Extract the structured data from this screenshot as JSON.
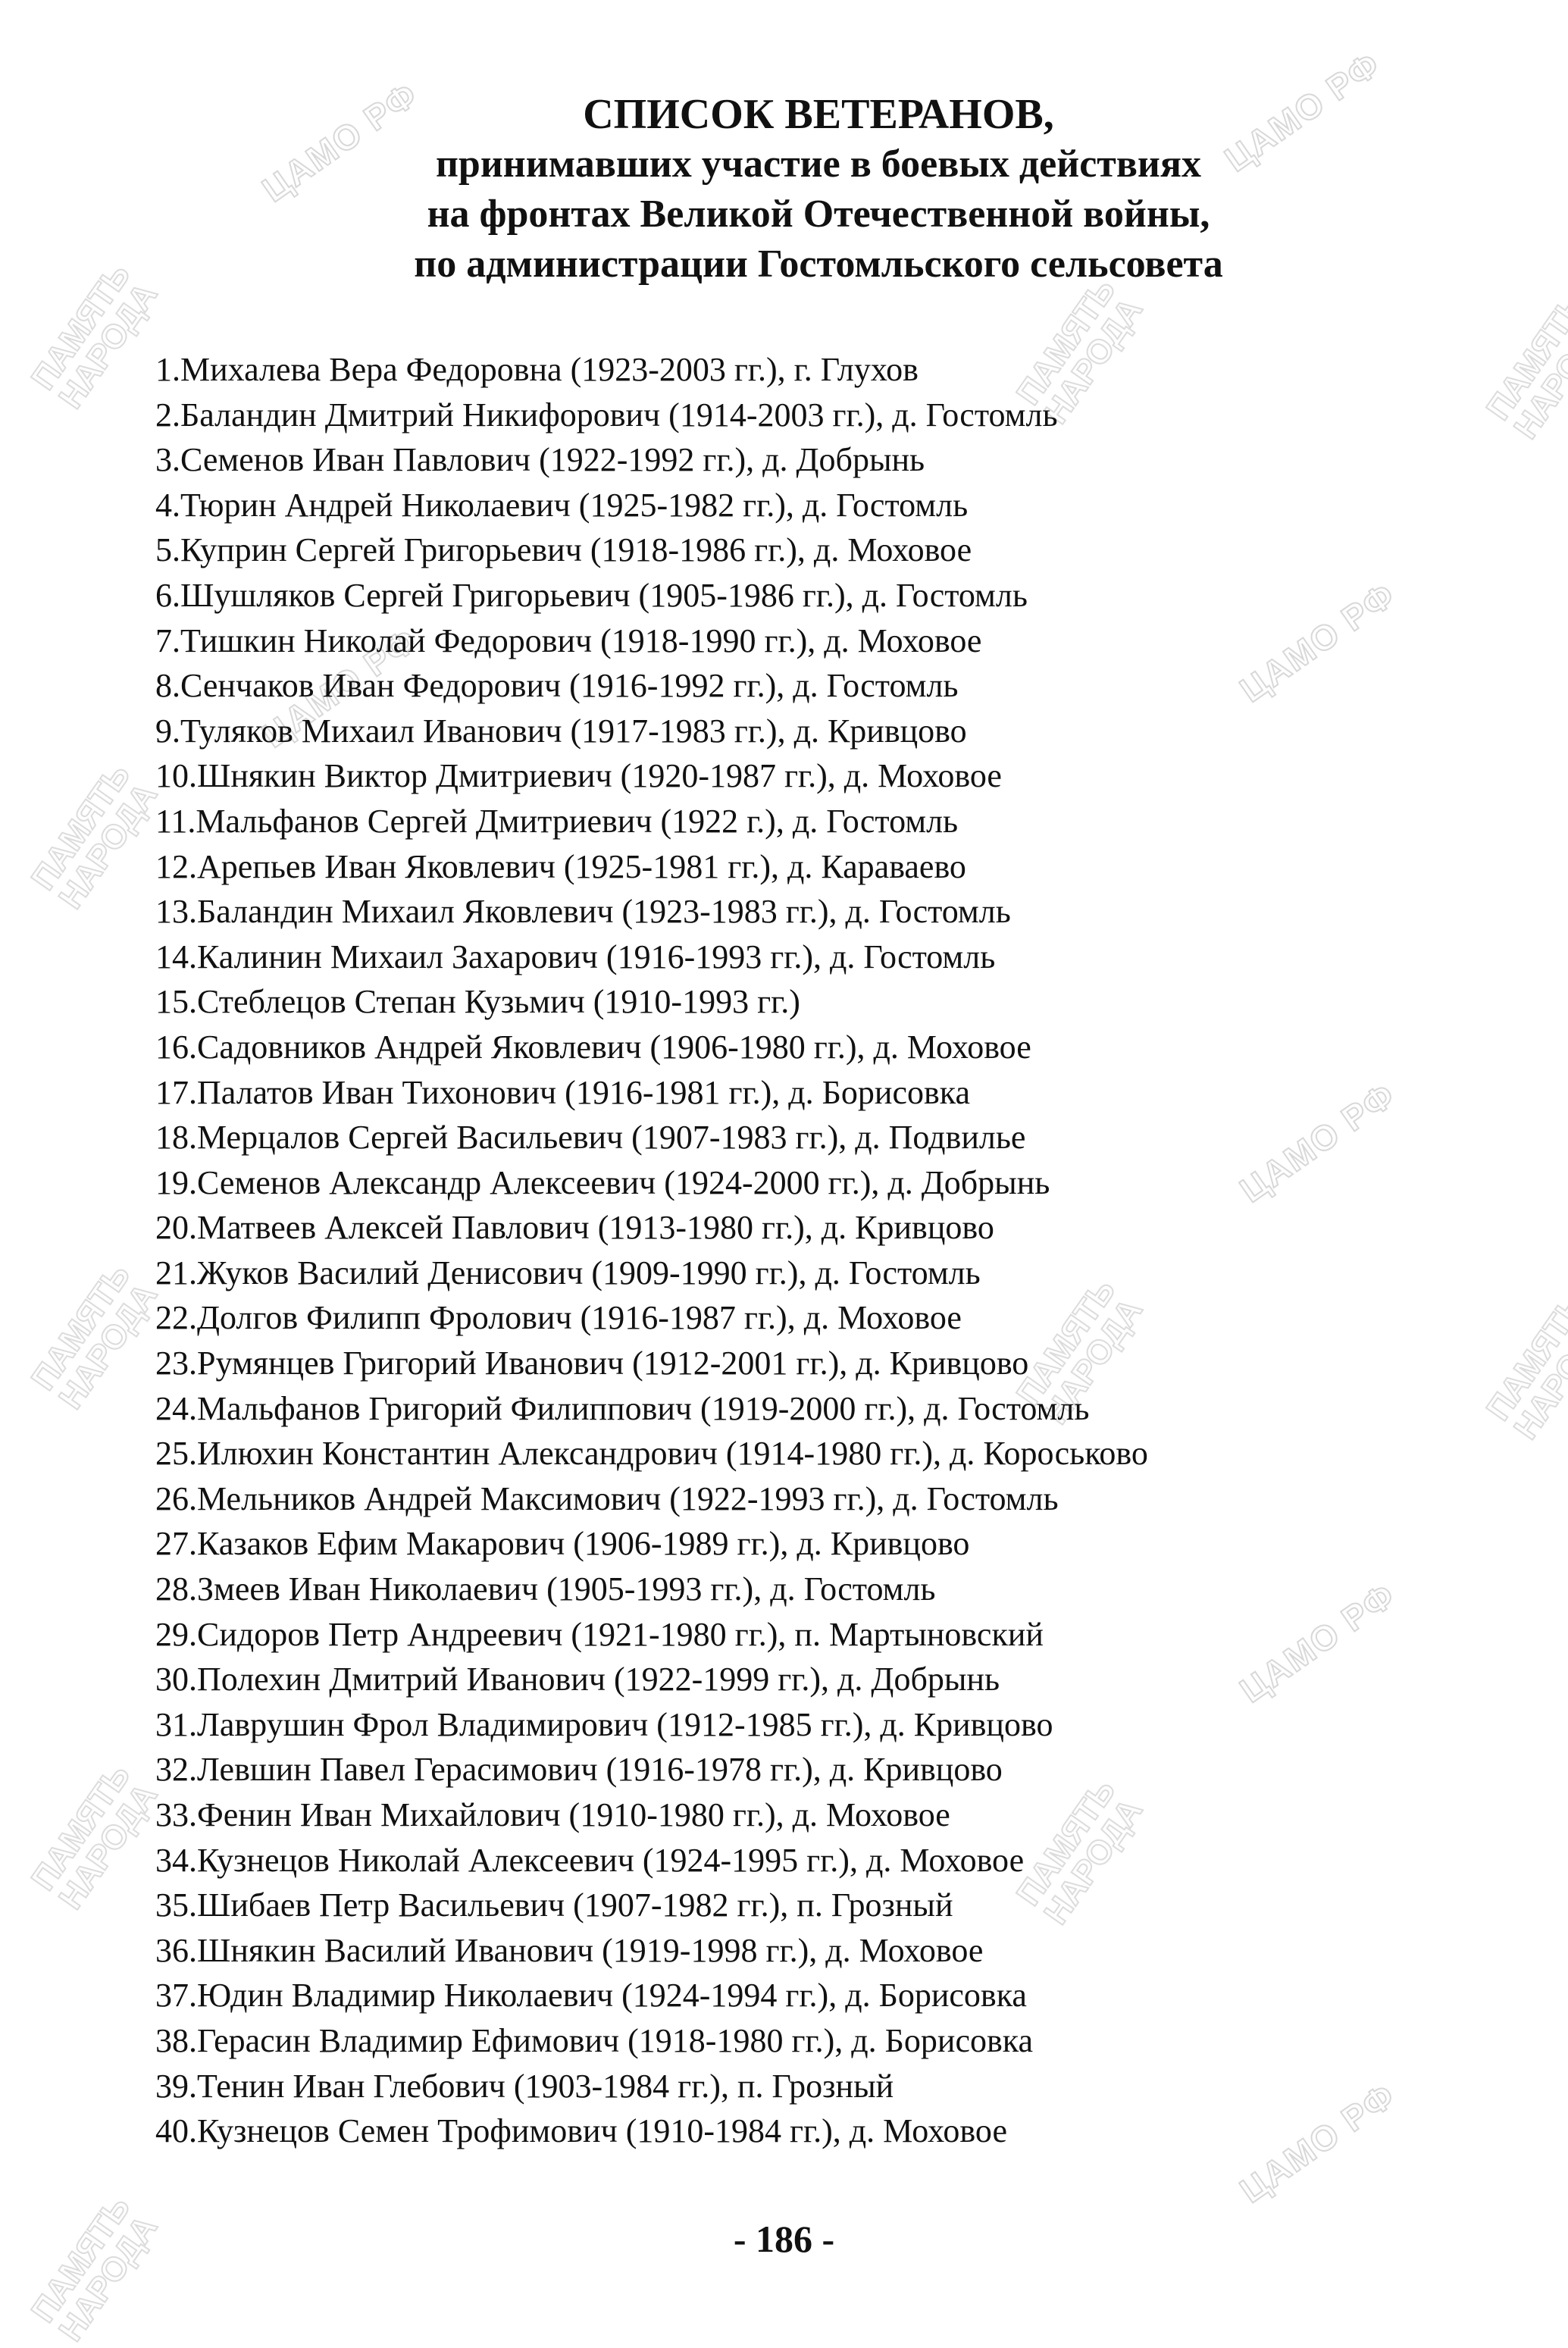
{
  "watermarks": {
    "archive": "ЦАМО РФ",
    "project": "ПАМЯТЬ НАРОДА"
  },
  "title": {
    "line1": "СПИСОК ВЕТЕРАНОВ,",
    "line2": "принимавших участие в боевых действиях",
    "line3": "на фронтах Великой Отечественной войны,",
    "line4": "по администрации Гостомльского сельсовета"
  },
  "veterans": [
    "1.Михалева Вера Федоровна (1923-2003 гг.), г. Глухов",
    "2.Баландин Дмитрий Никифорович (1914-2003 гг.), д. Гостомль",
    "3.Семенов Иван Павлович (1922-1992 гг.), д. Добрынь",
    "4.Тюрин Андрей Николаевич (1925-1982 гг.), д. Гостомль",
    "5.Куприн Сергей Григорьевич (1918-1986 гг.), д. Моховое",
    "6.Шушляков Сергей Григорьевич (1905-1986 гг.), д. Гостомль",
    "7.Тишкин Николай Федорович (1918-1990 гг.), д. Моховое",
    "8.Сенчаков Иван Федорович (1916-1992 гг.), д. Гостомль",
    "9.Туляков Михаил Иванович (1917-1983 гг.), д. Кривцово",
    "10.Шнякин Виктор Дмитриевич (1920-1987 гг.), д. Моховое",
    "11.Мальфанов Сергей Дмитриевич (1922 г.), д. Гостомль",
    "12.Арепьев Иван Яковлевич (1925-1981 гг.), д. Караваево",
    "13.Баландин Михаил Яковлевич (1923-1983 гг.), д. Гостомль",
    "14.Калинин Михаил Захарович (1916-1993 гг.), д. Гостомль",
    "15.Стеблецов Степан Кузьмич (1910-1993 гг.)",
    "16.Садовников Андрей Яковлевич (1906-1980 гг.), д. Моховое",
    "17.Палатов Иван Тихонович (1916-1981 гг.), д. Борисовка",
    "18.Мерцалов Сергей Васильевич (1907-1983 гг.), д. Подвилье",
    "19.Семенов Александр Алексеевич (1924-2000 гг.), д. Добрынь",
    "20.Матвеев Алексей Павлович (1913-1980 гг.), д. Кривцово",
    "21.Жуков Василий Денисович (1909-1990 гг.), д. Гостомль",
    "22.Долгов Филипп Фролович (1916-1987 гг.), д. Моховое",
    "23.Румянцев Григорий Иванович (1912-2001 гг.), д. Кривцово",
    "24.Мальфанов Григорий Филиппович (1919-2000 гг.), д. Гостомль",
    "25.Илюхин Константин Александрович (1914-1980 гг.), д. Короськово",
    "26.Мельников Андрей Максимович (1922-1993 гг.), д. Гостомль",
    "27.Казаков Ефим Макарович (1906-1989 гг.), д. Кривцово",
    "28.Змеев Иван Николаевич (1905-1993 гг.), д. Гостомль",
    "29.Сидоров Петр Андреевич (1921-1980 гг.), п. Мартыновский",
    "30.Полехин Дмитрий Иванович (1922-1999 гг.), д. Добрынь",
    "31.Лаврушин Фрол Владимирович (1912-1985 гг.), д. Кривцово",
    "32.Левшин Павел Герасимович (1916-1978 гг.), д. Кривцово",
    "33.Фенин Иван Михайлович (1910-1980 гг.), д. Моховое",
    "34.Кузнецов Николай Алексеевич (1924-1995 гг.), д. Моховое",
    "35.Шибаев Петр Васильевич (1907-1982 гг.), п. Грозный",
    "36.Шнякин Василий Иванович (1919-1998 гг.), д. Моховое",
    "37.Юдин Владимир Николаевич (1924-1994 гг.), д. Борисовка",
    "38.Герасин Владимир Ефимович (1918-1980 гг.), д. Борисовка",
    "39.Тенин Иван Глебович (1903-1984 гг.), п. Грозный",
    "40.Кузнецов Семен Трофимович (1910-1984 гг.), д. Моховое"
  ],
  "page_number": "- 186 -"
}
